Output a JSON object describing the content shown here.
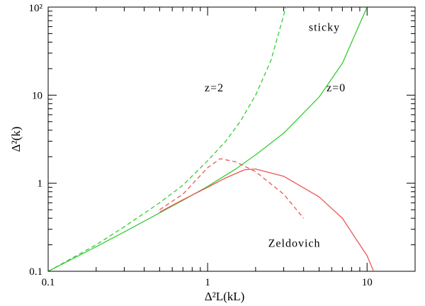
{
  "chart_data": {
    "type": "line",
    "xscale": "log",
    "yscale": "log",
    "xlim": [
      0.1,
      20
    ],
    "ylim": [
      0.1,
      100
    ],
    "xlabel": "Δ²L(kL)",
    "ylabel": "Δ²(k)",
    "x_ticks": [
      {
        "value": 0.1,
        "label": "0.1"
      },
      {
        "value": 1,
        "label": "1"
      },
      {
        "value": 10,
        "label": "10"
      }
    ],
    "y_ticks": [
      {
        "value": 0.1,
        "label": "0.1"
      },
      {
        "value": 1,
        "label": "1"
      },
      {
        "value": 10,
        "label": "10"
      },
      {
        "value": 100,
        "label": "10²"
      }
    ],
    "colors": {
      "sticky": "#33cc33",
      "zeldovich": "#ee5555",
      "axes": "#000000"
    },
    "grid": false,
    "series": [
      {
        "group": "sticky",
        "z": "z=0",
        "dashed": false,
        "color": "#33cc33",
        "points": [
          [
            0.1,
            0.1
          ],
          [
            0.2,
            0.19
          ],
          [
            0.3,
            0.28
          ],
          [
            0.5,
            0.46
          ],
          [
            0.7,
            0.64
          ],
          [
            1.0,
            0.92
          ],
          [
            1.5,
            1.45
          ],
          [
            2.0,
            2.1
          ],
          [
            3.0,
            3.7
          ],
          [
            5.0,
            9.5
          ],
          [
            7.0,
            23
          ],
          [
            10.0,
            100
          ]
        ]
      },
      {
        "group": "sticky",
        "z": "z=2",
        "dashed": true,
        "color": "#33cc33",
        "points": [
          [
            0.1,
            0.1
          ],
          [
            0.2,
            0.2
          ],
          [
            0.3,
            0.32
          ],
          [
            0.5,
            0.6
          ],
          [
            0.7,
            0.95
          ],
          [
            1.0,
            1.8
          ],
          [
            1.3,
            3.0
          ],
          [
            1.6,
            5.0
          ],
          [
            2.0,
            10
          ],
          [
            2.5,
            25
          ],
          [
            3.1,
            100
          ]
        ]
      },
      {
        "group": "zeldovich",
        "z": "z=0",
        "dashed": false,
        "color": "#ee5555",
        "points": [
          [
            0.5,
            0.47
          ],
          [
            0.7,
            0.65
          ],
          [
            1.0,
            0.9
          ],
          [
            1.3,
            1.15
          ],
          [
            1.7,
            1.42
          ],
          [
            2.0,
            1.45
          ],
          [
            3.0,
            1.2
          ],
          [
            5.0,
            0.7
          ],
          [
            7.0,
            0.4
          ],
          [
            10.0,
            0.15
          ],
          [
            11,
            0.1
          ]
        ]
      },
      {
        "group": "zeldovich",
        "z": "z=2",
        "dashed": true,
        "color": "#ee5555",
        "points": [
          [
            0.5,
            0.5
          ],
          [
            0.7,
            0.75
          ],
          [
            1.0,
            1.5
          ],
          [
            1.2,
            1.9
          ],
          [
            1.5,
            1.75
          ],
          [
            2.0,
            1.35
          ],
          [
            3.0,
            0.75
          ],
          [
            4.0,
            0.4
          ]
        ]
      }
    ],
    "annotations": [
      {
        "text": "sticky",
        "x": 5.4,
        "y": 54
      },
      {
        "text": "z=2",
        "x": 1.1,
        "y": 11
      },
      {
        "text": "z=0",
        "x": 6.4,
        "y": 11
      },
      {
        "text": "Zeldovich",
        "x": 3.5,
        "y": 0.19
      }
    ]
  }
}
